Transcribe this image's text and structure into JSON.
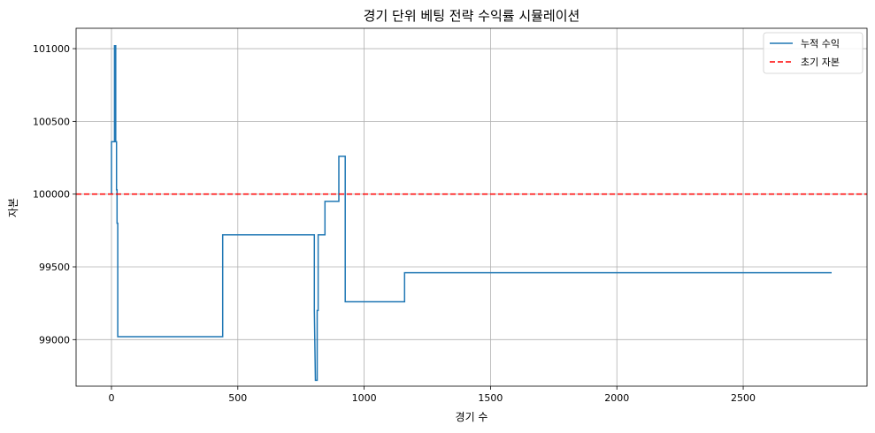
{
  "chart_data": {
    "type": "line",
    "title": "경기 단위 베팅 전략 수익률 시뮬레이션",
    "xlabel": "경기 수",
    "ylabel": "자본",
    "xlim": [
      -140,
      2990
    ],
    "ylim": [
      98680,
      101140
    ],
    "xticks": [
      0,
      500,
      1000,
      1500,
      2000,
      2500
    ],
    "yticks": [
      99000,
      99500,
      100000,
      100500,
      101000
    ],
    "grid": true,
    "legend_position": "top-right",
    "series": [
      {
        "name": "누적 수익",
        "color": "#1f77b4",
        "style": "solid",
        "x": [
          0,
          0,
          12,
          12,
          17,
          17,
          20,
          20,
          22,
          22,
          25,
          25,
          440,
          440,
          803,
          803,
          807,
          807,
          814,
          814,
          818,
          818,
          845,
          845,
          900,
          900,
          925,
          925,
          1160,
          1160,
          2850
        ],
        "y": [
          100000,
          100360,
          100360,
          101020,
          101020,
          100360,
          100360,
          100030,
          100030,
          99800,
          99800,
          99020,
          99020,
          99720,
          99720,
          99200,
          98720,
          98720,
          98720,
          99200,
          99200,
          99720,
          99720,
          99950,
          99950,
          100260,
          100260,
          99260,
          99260,
          99460,
          99460
        ]
      },
      {
        "name": "초기 자본",
        "color": "#ff0000",
        "style": "dashed",
        "hline": 100000
      }
    ]
  }
}
